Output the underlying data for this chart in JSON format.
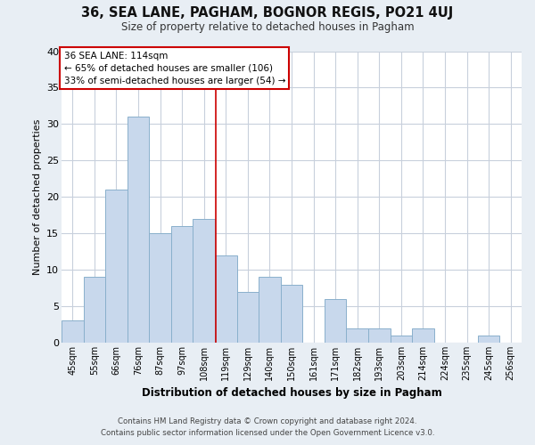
{
  "title": "36, SEA LANE, PAGHAM, BOGNOR REGIS, PO21 4UJ",
  "subtitle": "Size of property relative to detached houses in Pagham",
  "xlabel": "Distribution of detached houses by size in Pagham",
  "ylabel": "Number of detached properties",
  "bar_labels": [
    "45sqm",
    "55sqm",
    "66sqm",
    "76sqm",
    "87sqm",
    "97sqm",
    "108sqm",
    "119sqm",
    "129sqm",
    "140sqm",
    "150sqm",
    "161sqm",
    "171sqm",
    "182sqm",
    "193sqm",
    "203sqm",
    "214sqm",
    "224sqm",
    "235sqm",
    "245sqm",
    "256sqm"
  ],
  "bar_values": [
    3,
    9,
    21,
    31,
    15,
    16,
    17,
    12,
    7,
    9,
    8,
    0,
    6,
    2,
    2,
    1,
    2,
    0,
    0,
    1,
    0
  ],
  "bar_color": "#c8d8ec",
  "bar_edge_color": "#8ab0cc",
  "vline_color": "#cc0000",
  "annotation_box_edge": "#cc0000",
  "annotation_box_color": "#ffffff",
  "ylim": [
    0,
    40
  ],
  "yticks": [
    0,
    5,
    10,
    15,
    20,
    25,
    30,
    35,
    40
  ],
  "footer_line1": "Contains HM Land Registry data © Crown copyright and database right 2024.",
  "footer_line2": "Contains public sector information licensed under the Open Government Licence v3.0.",
  "bg_color": "#e8eef4",
  "plot_bg_color": "#ffffff",
  "grid_color": "#c8d0dc"
}
